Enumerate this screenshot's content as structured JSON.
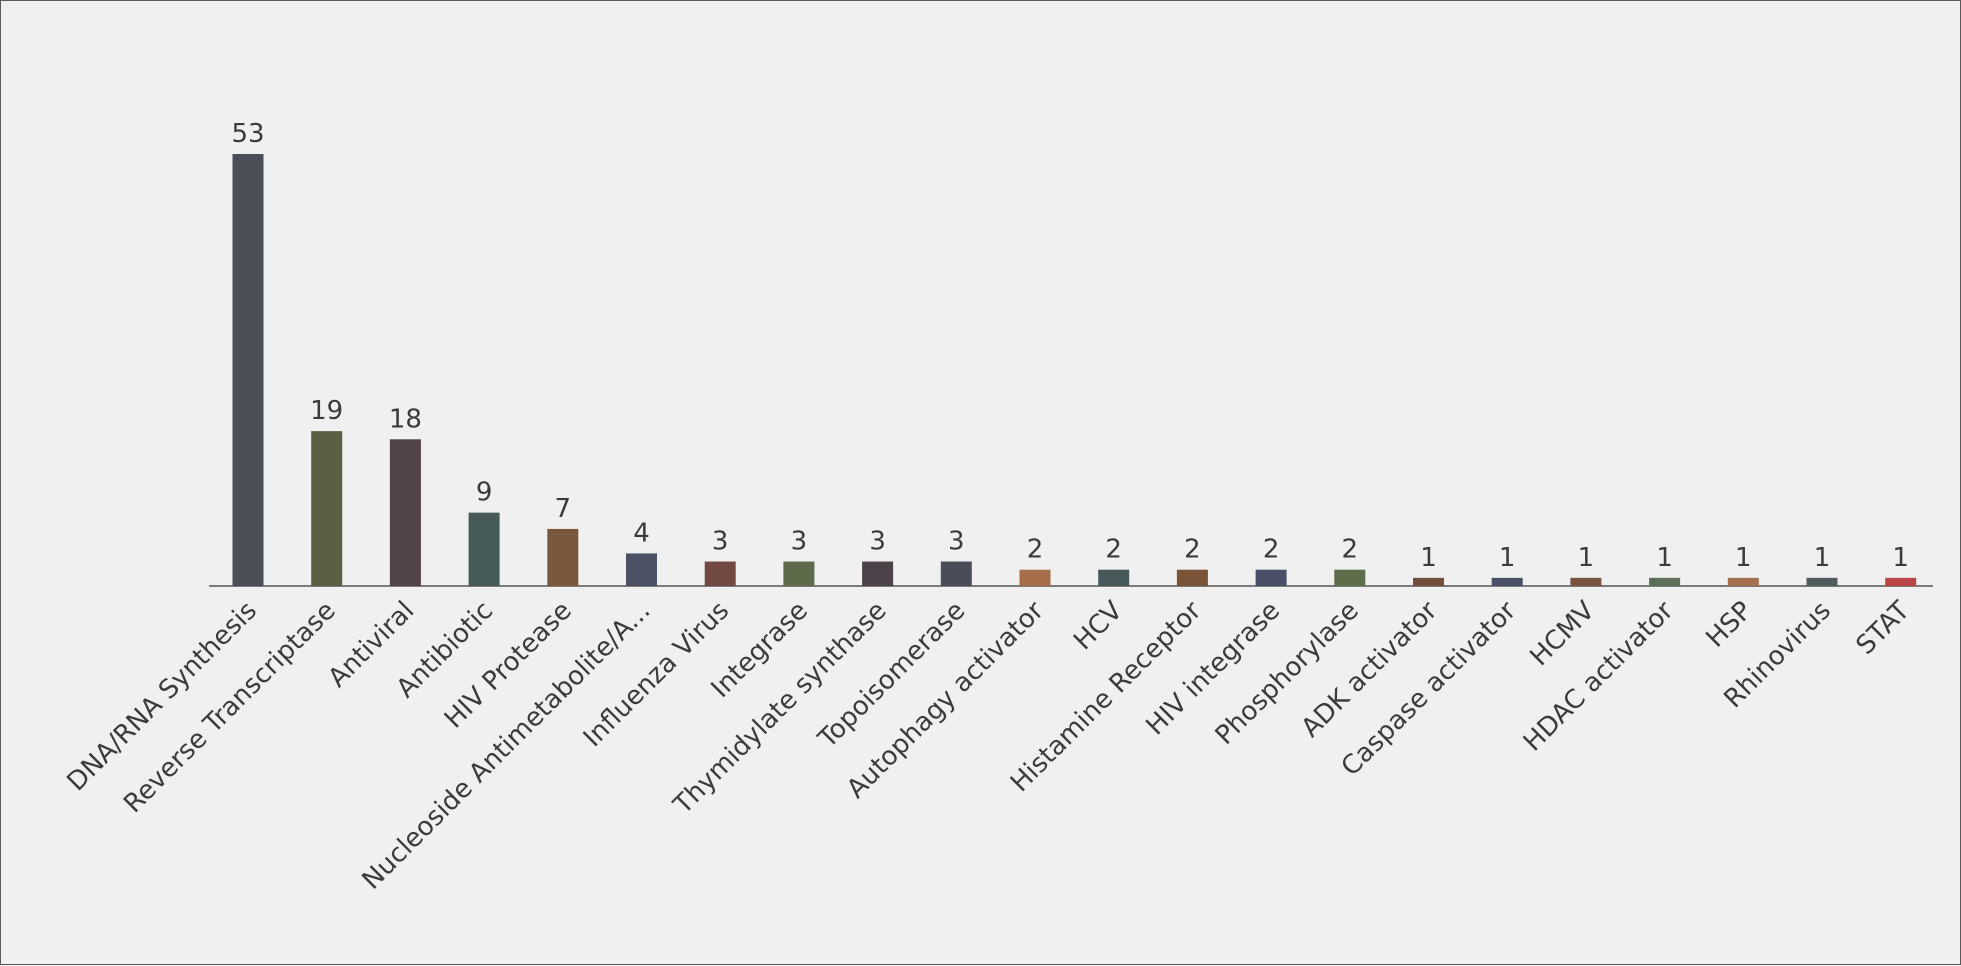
{
  "chart_data": {
    "type": "bar",
    "categories": [
      "DNA/RNA Synthesis",
      "Reverse Transcriptase",
      "Antiviral",
      "Antibiotic",
      "HIV Protease",
      "Nucleoside Antimetabolite/A...",
      "Influenza Virus",
      "Integrase",
      "Thymidylate synthase",
      "Topoisomerase",
      "Autophagy activator",
      "HCV",
      "Histamine Receptor",
      "HIV integrase",
      "Phosphorylase",
      "ADK activator",
      "Caspase activator",
      "HCMV",
      "HDAC activator",
      "HSP",
      "Rhinovirus",
      "STAT"
    ],
    "values": [
      53,
      19,
      18,
      9,
      7,
      4,
      3,
      3,
      3,
      3,
      2,
      2,
      2,
      2,
      2,
      1,
      1,
      1,
      1,
      1,
      1,
      1
    ],
    "colors": [
      "#4a4e57",
      "#5a6044",
      "#524349",
      "#465b58",
      "#7a583e",
      "#4b5266",
      "#724843",
      "#5d6b4b",
      "#4d4249",
      "#494d58",
      "#a66d4a",
      "#47595a",
      "#7a5439",
      "#4a5068",
      "#5e6e4a",
      "#724f3d",
      "#4b5166",
      "#7a5442",
      "#5d6f56",
      "#a5704f",
      "#4f5b5e",
      "#b84446"
    ],
    "ylim": [
      0,
      60
    ],
    "grid": false,
    "title": "",
    "xlabel": "",
    "ylabel": ""
  }
}
